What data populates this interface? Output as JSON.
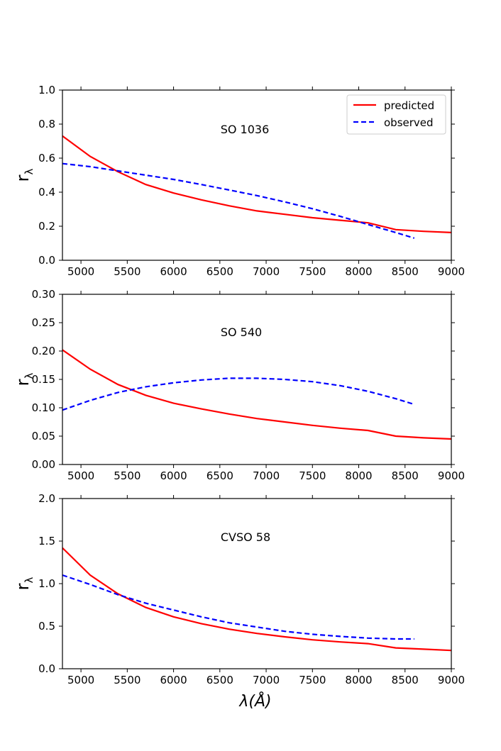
{
  "figure": {
    "xlabel_text": "λ(Å)",
    "legend": {
      "predicted": "predicted",
      "observed": "observed"
    }
  },
  "colors": {
    "predicted": "#ff0000",
    "observed": "#0000ff"
  },
  "chart_data": [
    {
      "type": "line",
      "title": "SO 1036",
      "xlabel": "",
      "ylabel": "r_λ",
      "xlim": [
        4800,
        9000
      ],
      "ylim": [
        0.0,
        1.0
      ],
      "xticks": [
        5000,
        5500,
        6000,
        6500,
        7000,
        7500,
        8000,
        8500,
        9000
      ],
      "yticks": [
        0.0,
        0.2,
        0.4,
        0.6,
        0.8,
        1.0
      ],
      "ytick_labels": [
        "0.0",
        "0.2",
        "0.4",
        "0.6",
        "0.8",
        "1.0"
      ],
      "legend": "top-right",
      "series": [
        {
          "name": "predicted",
          "x": [
            4800,
            5100,
            5400,
            5700,
            6000,
            6300,
            6600,
            6900,
            7200,
            7500,
            7800,
            8100,
            8400,
            8700,
            9000
          ],
          "y": [
            0.73,
            0.61,
            0.52,
            0.445,
            0.395,
            0.355,
            0.32,
            0.29,
            0.27,
            0.25,
            0.235,
            0.22,
            0.18,
            0.17,
            0.163
          ]
        },
        {
          "name": "observed",
          "x": [
            4800,
            5100,
            5400,
            5700,
            6000,
            6300,
            6600,
            6900,
            7200,
            7500,
            7800,
            8100,
            8400,
            8600
          ],
          "y": [
            0.568,
            0.55,
            0.525,
            0.5,
            0.475,
            0.445,
            0.413,
            0.38,
            0.343,
            0.303,
            0.258,
            0.21,
            0.163,
            0.13
          ]
        }
      ]
    },
    {
      "type": "line",
      "title": "SO 540",
      "xlabel": "",
      "ylabel": "r_λ",
      "xlim": [
        4800,
        9000
      ],
      "ylim": [
        0.0,
        0.3
      ],
      "xticks": [
        5000,
        5500,
        6000,
        6500,
        7000,
        7500,
        8000,
        8500,
        9000
      ],
      "yticks": [
        0.0,
        0.05,
        0.1,
        0.15,
        0.2,
        0.25,
        0.3
      ],
      "ytick_labels": [
        "0.00",
        "0.05",
        "0.10",
        "0.15",
        "0.20",
        "0.25",
        "0.30"
      ],
      "series": [
        {
          "name": "predicted",
          "x": [
            4800,
            5100,
            5400,
            5700,
            6000,
            6300,
            6600,
            6900,
            7200,
            7500,
            7800,
            8100,
            8400,
            8700,
            9000
          ],
          "y": [
            0.202,
            0.168,
            0.141,
            0.122,
            0.108,
            0.098,
            0.089,
            0.081,
            0.075,
            0.069,
            0.064,
            0.06,
            0.05,
            0.047,
            0.045
          ]
        },
        {
          "name": "observed",
          "x": [
            4800,
            5100,
            5400,
            5700,
            6000,
            6300,
            6600,
            6900,
            7200,
            7500,
            7800,
            8100,
            8400,
            8600
          ],
          "y": [
            0.096,
            0.113,
            0.127,
            0.137,
            0.144,
            0.149,
            0.152,
            0.152,
            0.15,
            0.146,
            0.139,
            0.129,
            0.116,
            0.106
          ]
        }
      ]
    },
    {
      "type": "line",
      "title": "CVSO 58",
      "xlabel": "λ(Å)",
      "ylabel": "r_λ",
      "xlim": [
        4800,
        9000
      ],
      "ylim": [
        0.0,
        2.0
      ],
      "xticks": [
        5000,
        5500,
        6000,
        6500,
        7000,
        7500,
        8000,
        8500,
        9000
      ],
      "yticks": [
        0.0,
        0.5,
        1.0,
        1.5,
        2.0
      ],
      "ytick_labels": [
        "0.0",
        "0.5",
        "1.0",
        "1.5",
        "2.0"
      ],
      "series": [
        {
          "name": "predicted",
          "x": [
            4800,
            5100,
            5400,
            5700,
            6000,
            6300,
            6600,
            6900,
            7200,
            7500,
            7800,
            8100,
            8400,
            8700,
            9000
          ],
          "y": [
            1.42,
            1.1,
            0.88,
            0.72,
            0.61,
            0.53,
            0.465,
            0.415,
            0.375,
            0.34,
            0.315,
            0.295,
            0.245,
            0.23,
            0.215
          ]
        },
        {
          "name": "observed",
          "x": [
            4800,
            5100,
            5400,
            5700,
            6000,
            6300,
            6600,
            6900,
            7200,
            7500,
            7800,
            8100,
            8400,
            8600
          ],
          "y": [
            1.1,
            0.99,
            0.87,
            0.77,
            0.69,
            0.61,
            0.54,
            0.49,
            0.44,
            0.405,
            0.38,
            0.36,
            0.35,
            0.35
          ]
        }
      ]
    }
  ]
}
